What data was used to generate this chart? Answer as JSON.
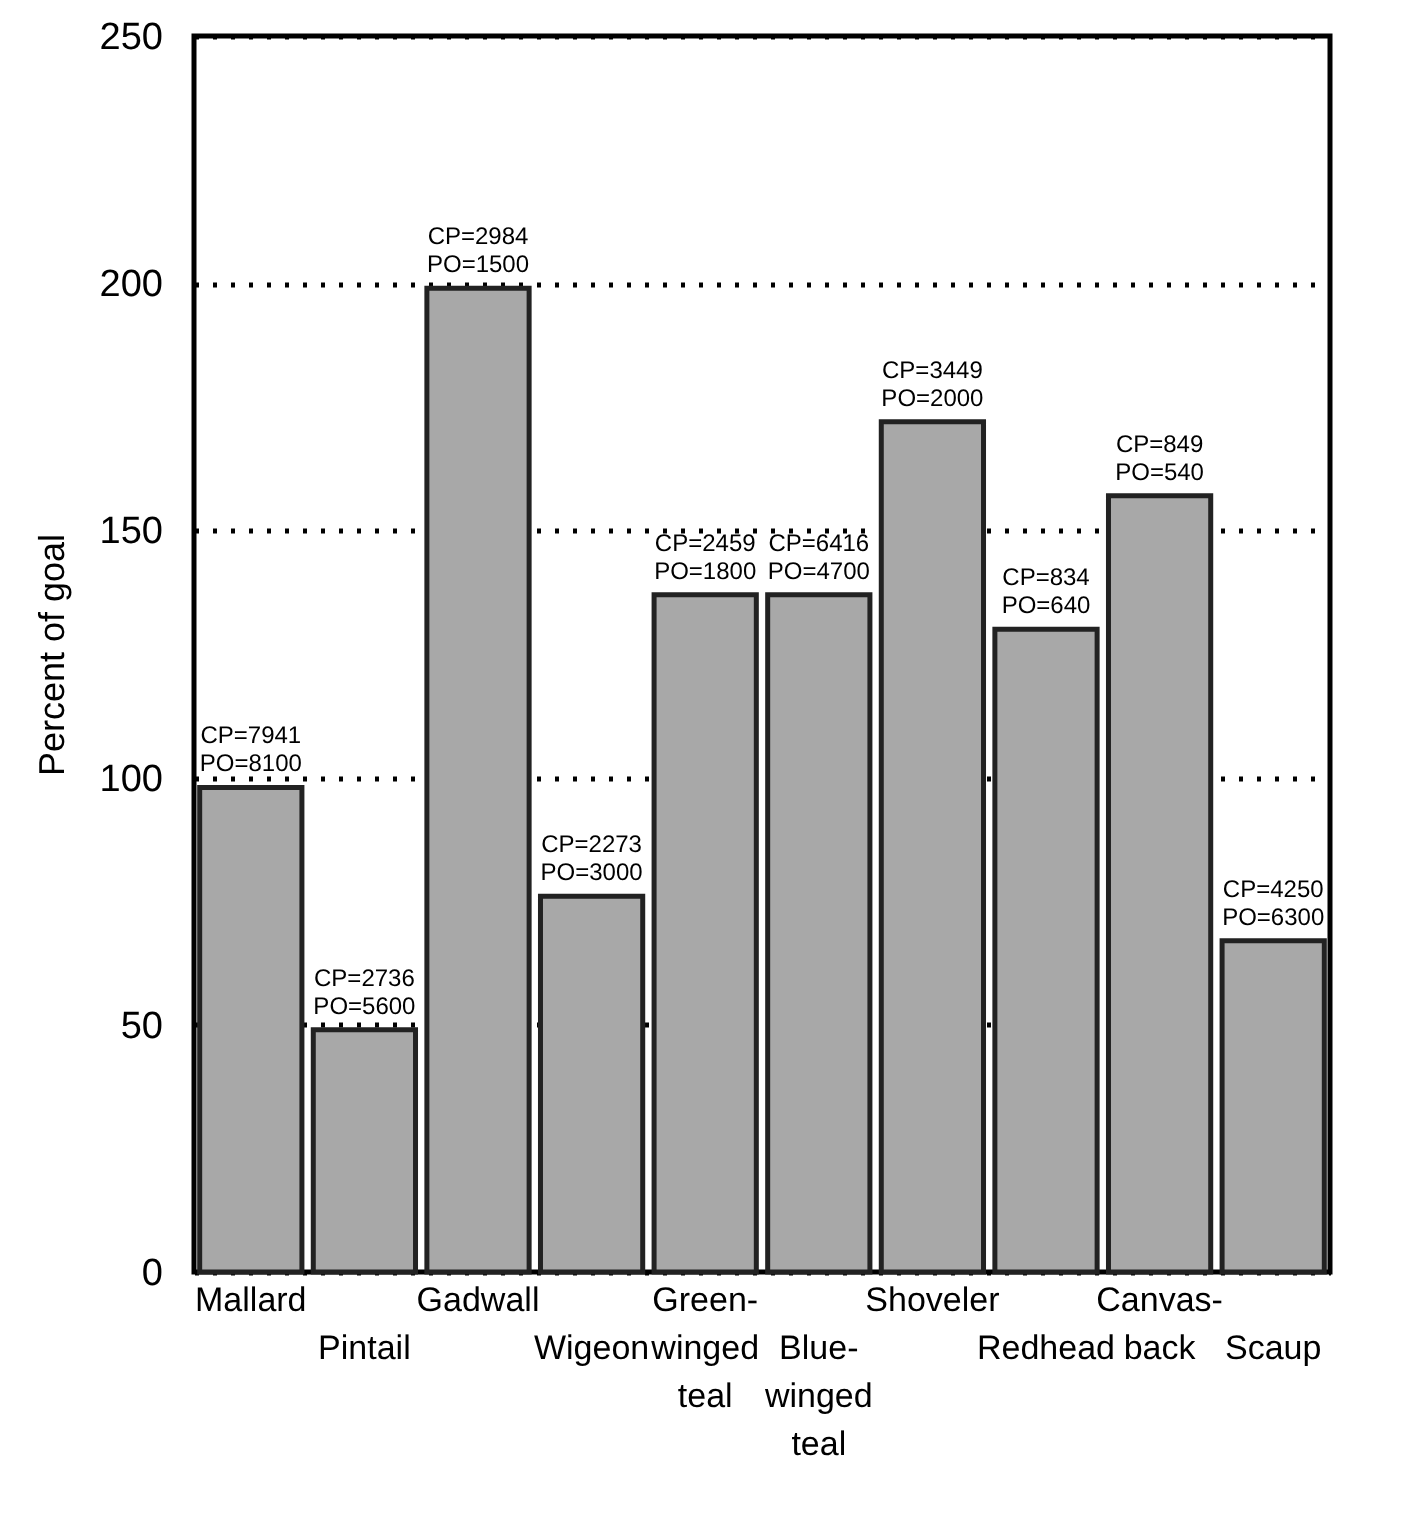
{
  "chart_data": {
    "type": "bar",
    "ylabel": "Percent of goal",
    "categories": [
      "Mallard",
      "Pintail",
      "Gadwall",
      "Wigeon",
      "Green-winged teal",
      "Blue-winged teal",
      "Shoveler",
      "Redhead",
      "Canvas-back",
      "Scaup"
    ],
    "values": [
      98,
      49,
      199,
      76,
      137,
      137,
      172,
      130,
      157,
      67
    ],
    "value_labels": [
      "CP=7941\nPO=8100",
      "CP=2736\nPO=5600",
      "CP=2984\nPO=1500",
      "CP=2273\nPO=3000",
      "CP=2459\nPO=1800",
      "CP=6416\nPO=4700",
      "CP=3449\nPO=2000",
      "CP=834\nPO=640",
      "CP=849\nPO=540",
      "CP=4250\nPO=6300"
    ],
    "color": "#a8a8a8",
    "ylim": [
      0,
      250
    ],
    "yticks": [
      0,
      50,
      100,
      150,
      200,
      250
    ],
    "grid": "y"
  }
}
